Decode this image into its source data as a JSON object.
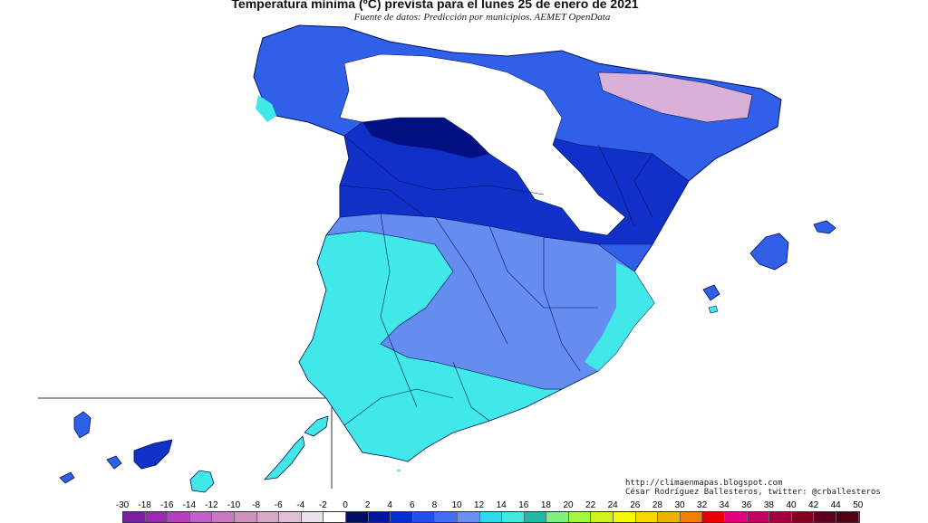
{
  "title": "Temperatura mínima (ºC) prevista para el lunes 25 de enero de 2021",
  "subtitle": "Fuente de datos: Predicción por municipios. AEMET OpenData",
  "credits": {
    "url": "http://climaenmapas.blogspot.com",
    "author": "César Rodríguez Ballesteros, twitter: @crballesteros"
  },
  "legend": {
    "labels": [
      "-30",
      "-18",
      "-16",
      "-14",
      "-12",
      "-10",
      "-8",
      "-6",
      "-4",
      "-2",
      "0",
      "2",
      "4",
      "6",
      "8",
      "10",
      "12",
      "14",
      "16",
      "18",
      "20",
      "22",
      "24",
      "26",
      "28",
      "30",
      "32",
      "34",
      "36",
      "38",
      "40",
      "42",
      "44",
      "50"
    ],
    "colors": [
      "#7b1fa2",
      "#9c27b0",
      "#b040c0",
      "#c060c8",
      "#c878c0",
      "#d090c0",
      "#d8a8c8",
      "#e0c0d8",
      "#ece0ec",
      "#ffffff",
      "#001060",
      "#0018a0",
      "#0030d0",
      "#2050e8",
      "#4070f0",
      "#6890f0",
      "#30d8f0",
      "#40e8e0",
      "#20b8a8",
      "#80f080",
      "#a0f840",
      "#d0f020",
      "#f8f800",
      "#f8d800",
      "#f0b000",
      "#f08000",
      "#e80000",
      "#e00080",
      "#c00060",
      "#a00040",
      "#800020",
      "#600020",
      "#500010"
    ]
  },
  "colors": {
    "deep_blue": "#0020a0",
    "blue": "#1840e0",
    "mid_blue": "#3060e8",
    "light_blue": "#6090f0",
    "cyan": "#40e8e8",
    "snow": "#ffffff",
    "purple_snow": "#d8b0d8",
    "navy": "#001080"
  }
}
